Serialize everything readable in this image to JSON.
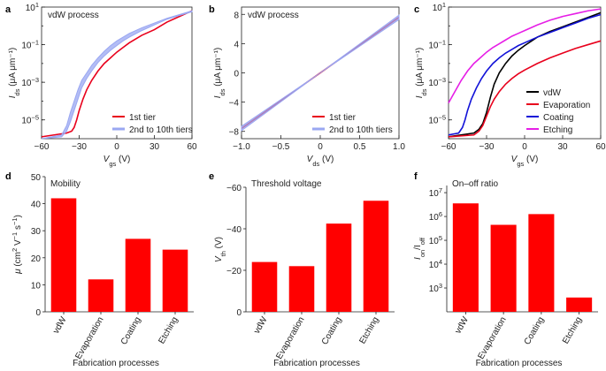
{
  "chart_data": [
    {
      "id": "a",
      "type": "line",
      "panel_label": "a",
      "title": "vdW process",
      "xlabel_main": "V",
      "xlabel_sub": "gs",
      "xlabel_unit": " (V)",
      "ylabel_main": "I",
      "ylabel_sub": "ds",
      "ylabel_unit": " (μA μm⁻¹)",
      "yscale": "log",
      "xlim": [
        -60,
        60
      ],
      "ylim_exp": [
        -6,
        1
      ],
      "xticks": [
        -60,
        -30,
        0,
        30,
        60
      ],
      "xticklabels": [
        "−60",
        "−30",
        "0",
        "30",
        "60"
      ],
      "yticks_exp": [
        -5,
        -3,
        -1,
        1
      ],
      "yticklabels": [
        "10−5",
        "10−3",
        "10−1",
        "101"
      ],
      "legend_pos": "bottom-right",
      "series": [
        {
          "name": "1st tier",
          "color": "#e8001c",
          "band": false,
          "x": [
            -60,
            -40,
            -36,
            -34,
            -32,
            -30,
            -27,
            -24,
            -20,
            -15,
            -10,
            -5,
            0,
            5,
            10,
            15,
            20,
            30,
            40,
            50,
            60
          ],
          "y": [
            -5.9,
            -5.7,
            -5.6,
            -5.4,
            -5.0,
            -4.5,
            -3.9,
            -3.4,
            -2.9,
            -2.4,
            -2.0,
            -1.7,
            -1.4,
            -1.15,
            -0.9,
            -0.7,
            -0.5,
            -0.2,
            0.2,
            0.5,
            0.8
          ]
        },
        {
          "name": "2nd to 10th tiers",
          "color": "#9aa7f2",
          "band": true,
          "x": [
            -60,
            -44,
            -40,
            -37,
            -34,
            -31,
            -28,
            -24,
            -20,
            -15,
            -10,
            -5,
            0,
            5,
            10,
            20,
            30,
            40,
            50,
            60
          ],
          "y": [
            -6.0,
            -5.8,
            -5.3,
            -4.6,
            -4.0,
            -3.4,
            -2.9,
            -2.5,
            -2.1,
            -1.7,
            -1.35,
            -1.05,
            -0.8,
            -0.6,
            -0.4,
            -0.1,
            0.15,
            0.4,
            0.6,
            0.8
          ],
          "y2": [
            -6.0,
            -5.9,
            -5.6,
            -5.1,
            -4.5,
            -3.9,
            -3.3,
            -2.8,
            -2.4,
            -1.95,
            -1.6,
            -1.3,
            -1.05,
            -0.8,
            -0.6,
            -0.25,
            0.05,
            0.35,
            0.55,
            0.75
          ]
        }
      ]
    },
    {
      "id": "b",
      "type": "line",
      "panel_label": "b",
      "title": "vdW process",
      "xlabel_main": "V",
      "xlabel_sub": "ds",
      "xlabel_unit": " (V)",
      "ylabel_main": "I",
      "ylabel_sub": "ds",
      "ylabel_unit": " (μA μm⁻¹)",
      "yscale": "linear",
      "xlim": [
        -1.0,
        1.0
      ],
      "ylim": [
        -9,
        9
      ],
      "xticks": [
        -1.0,
        -0.5,
        0,
        0.5,
        1.0
      ],
      "xticklabels": [
        "−1.0",
        "−0.5",
        "0",
        "0.5",
        "1.0"
      ],
      "yticks": [
        -8,
        -4,
        0,
        4,
        8
      ],
      "yticklabels": [
        "−8",
        "−4",
        "0",
        "4",
        "8"
      ],
      "legend_pos": "bottom-right",
      "series": [
        {
          "name": "1st tier",
          "color": "#e8001c",
          "band": false,
          "x": [
            -1.0,
            1.0
          ],
          "y": [
            -7.6,
            7.6
          ]
        },
        {
          "name": "2nd to 10th tiers",
          "color": "#9aa7f2",
          "band": true,
          "x": [
            -1.0,
            1.0
          ],
          "y": [
            -7.9,
            7.9
          ],
          "y2": [
            -7.3,
            7.3
          ]
        }
      ]
    },
    {
      "id": "c",
      "type": "line",
      "panel_label": "c",
      "title": "",
      "xlabel_main": "V",
      "xlabel_sub": "gs",
      "xlabel_unit": " (V)",
      "ylabel_main": "I",
      "ylabel_sub": "ds",
      "ylabel_unit": " (μA μm⁻¹)",
      "yscale": "log",
      "xlim": [
        -60,
        60
      ],
      "ylim_exp": [
        -6,
        1
      ],
      "xticks": [
        -60,
        -30,
        0,
        30,
        60
      ],
      "xticklabels": [
        "−60",
        "−30",
        "0",
        "30",
        "60"
      ],
      "yticks_exp": [
        -5,
        -3,
        -1,
        1
      ],
      "yticklabels": [
        "10−5",
        "10−3",
        "10−1",
        "101"
      ],
      "legend_pos": "bottom-right",
      "series": [
        {
          "name": "vdW",
          "color": "#000000",
          "band": false,
          "x": [
            -60,
            -40,
            -36,
            -33,
            -30,
            -27,
            -24,
            -20,
            -15,
            -10,
            -5,
            0,
            10,
            20,
            30,
            40,
            50,
            60
          ],
          "y": [
            -5.9,
            -5.7,
            -5.5,
            -5.2,
            -4.6,
            -3.8,
            -3.1,
            -2.5,
            -2.0,
            -1.6,
            -1.3,
            -1.05,
            -0.6,
            -0.3,
            -0.05,
            0.2,
            0.45,
            0.7
          ]
        },
        {
          "name": "Evaporation",
          "color": "#e8001c",
          "band": false,
          "x": [
            -60,
            -40,
            -36,
            -33,
            -30,
            -27,
            -24,
            -20,
            -15,
            -10,
            -5,
            0,
            10,
            20,
            30,
            40,
            50,
            60
          ],
          "y": [
            -5.9,
            -5.8,
            -5.6,
            -5.3,
            -4.8,
            -4.3,
            -3.9,
            -3.5,
            -3.1,
            -2.8,
            -2.55,
            -2.35,
            -2.0,
            -1.7,
            -1.45,
            -1.2,
            -1.0,
            -0.8
          ]
        },
        {
          "name": "Coating",
          "color": "#1212d8",
          "band": false,
          "x": [
            -60,
            -52,
            -49,
            -47,
            -45,
            -42,
            -38,
            -34,
            -30,
            -25,
            -20,
            -15,
            -10,
            -5,
            0,
            10,
            20,
            30,
            40,
            50,
            60
          ],
          "y": [
            -5.8,
            -5.7,
            -5.4,
            -5.0,
            -4.5,
            -3.9,
            -3.3,
            -2.8,
            -2.4,
            -2.0,
            -1.7,
            -1.45,
            -1.25,
            -1.05,
            -0.9,
            -0.6,
            -0.35,
            -0.1,
            0.15,
            0.4,
            0.6
          ]
        },
        {
          "name": "Etching",
          "color": "#e61ee6",
          "band": false,
          "x": [
            -60,
            -55,
            -50,
            -45,
            -40,
            -35,
            -30,
            -25,
            -20,
            -15,
            -10,
            -5,
            0,
            10,
            20,
            30,
            40,
            50,
            60
          ],
          "y": [
            -4.1,
            -3.5,
            -2.9,
            -2.4,
            -2.0,
            -1.7,
            -1.4,
            -1.15,
            -0.95,
            -0.75,
            -0.55,
            -0.4,
            -0.25,
            0.05,
            0.3,
            0.5,
            0.65,
            0.8,
            0.9
          ]
        }
      ]
    },
    {
      "id": "d",
      "type": "bar",
      "panel_label": "d",
      "title": "Mobility",
      "categories": [
        "vdW",
        "Evaporation",
        "Coating",
        "Etching"
      ],
      "values": [
        42,
        12,
        27,
        23
      ],
      "color": "#ff0000",
      "yscale": "linear",
      "ylim": [
        0,
        50
      ],
      "yticks": [
        0,
        10,
        20,
        30,
        40,
        50
      ],
      "yticklabels": [
        "0",
        "10",
        "20",
        "30",
        "40",
        "50"
      ],
      "ylabel_main": "μ (cm",
      "ylabel_rest": " V",
      "ylabel_end": " s",
      "ylabel_sup1": "2",
      "ylabel_sup2": "−1",
      "ylabel_sup3": "−1",
      "ylabel_close": ")",
      "xlabel": "Fabrication processes"
    },
    {
      "id": "e",
      "type": "bar",
      "panel_label": "e",
      "title": "Threshold voltage",
      "categories": [
        "vdW",
        "Evaporation",
        "Coating",
        "Etching"
      ],
      "values": [
        -24,
        -22,
        -42.5,
        -53.5
      ],
      "color": "#ff0000",
      "yscale": "linear",
      "ylim": [
        0,
        -60
      ],
      "yticks": [
        0,
        -20,
        -40,
        -60
      ],
      "yticklabels": [
        "0",
        "−20",
        "−40",
        "−60"
      ],
      "ylabel_main": "V",
      "ylabel_sub": "th",
      "ylabel_unit": " (V)",
      "xlabel": "Fabrication processes"
    },
    {
      "id": "f",
      "type": "bar",
      "panel_label": "f",
      "title": "On–off ratio",
      "categories": [
        "vdW",
        "Evaporation",
        "Coating",
        "Etching"
      ],
      "values_exp": [
        6.55,
        5.65,
        6.1,
        2.6
      ],
      "color": "#ff0000",
      "yscale": "log",
      "ylim_exp": [
        2,
        7.3
      ],
      "yticks_exp": [
        3,
        4,
        5,
        6,
        7
      ],
      "yticklabels": [
        "103",
        "104",
        "105",
        "106",
        "107"
      ],
      "ylabel_main": "I",
      "ylabel_sub1": "on",
      "ylabel_mid": "/I",
      "ylabel_sub2": "off",
      "xlabel": "Fabrication processes"
    }
  ]
}
